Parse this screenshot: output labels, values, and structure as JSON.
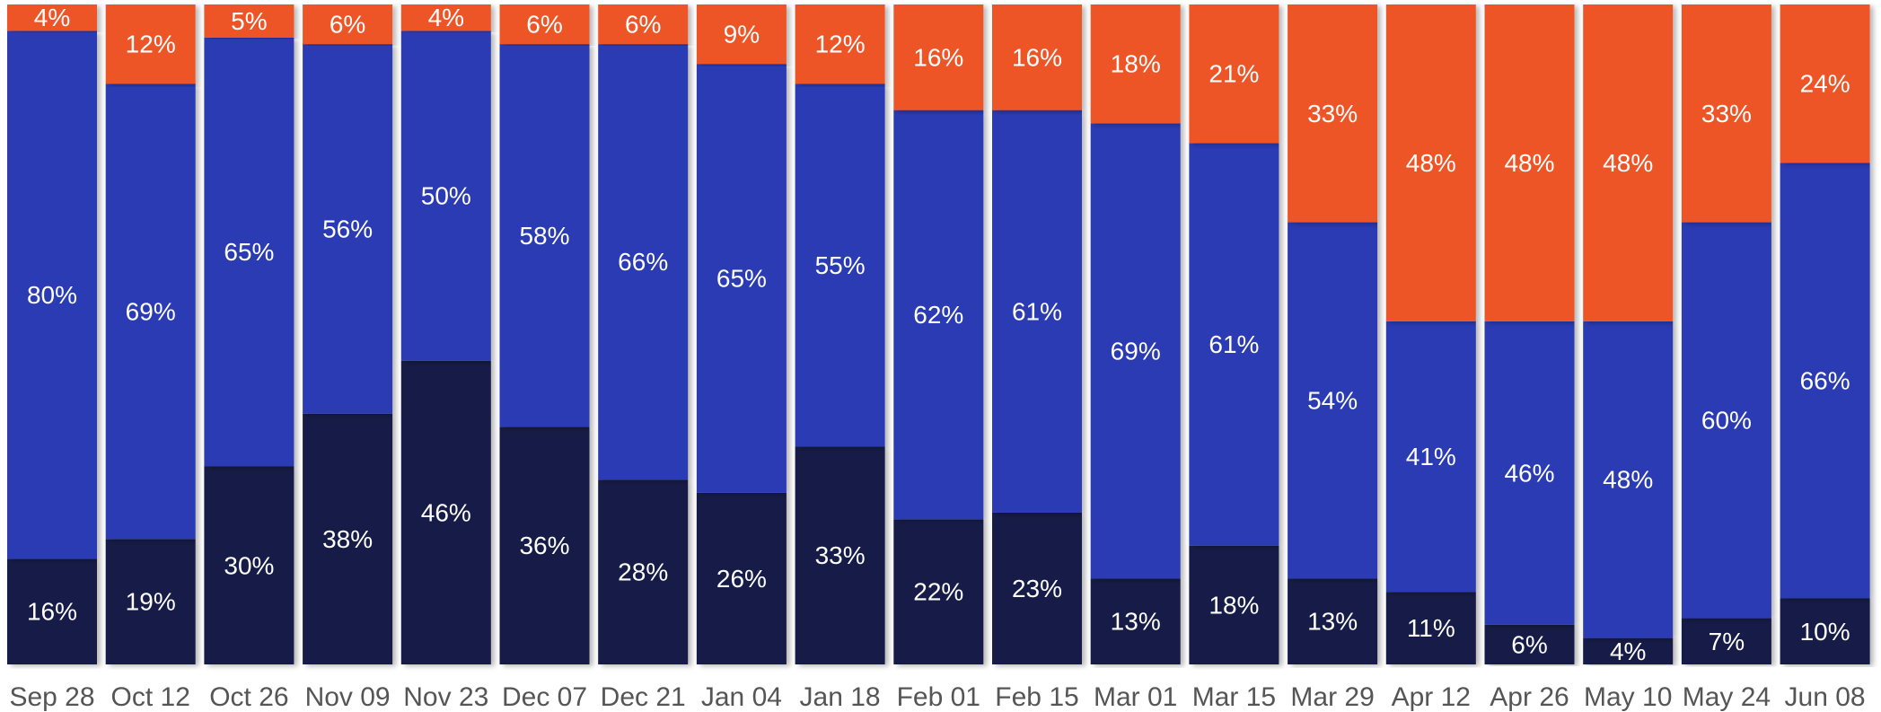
{
  "chart_data": {
    "type": "bar",
    "stacked": true,
    "normalized": true,
    "categories": [
      "Sep 28",
      "Oct 12",
      "Oct 26",
      "Nov 09",
      "Nov 23",
      "Dec 07",
      "Dec 21",
      "Jan 04",
      "Jan 18",
      "Feb 01",
      "Feb 15",
      "Mar 01",
      "Mar 15",
      "Mar 29",
      "Apr 12",
      "Apr 26",
      "May 10",
      "May 24",
      "Jun 08"
    ],
    "series": [
      {
        "values": [
          16,
          19,
          30,
          38,
          46,
          36,
          28,
          26,
          33,
          22,
          23,
          13,
          18,
          13,
          11,
          6,
          4,
          7,
          10
        ],
        "labels": [
          "16%",
          "19%",
          "30%",
          "38%",
          "46%",
          "36%",
          "28%",
          "26%",
          "33%",
          "22%",
          "23%",
          "13%",
          "18%",
          "13%",
          "11%",
          "6%",
          "4%",
          "7%",
          "10%"
        ],
        "color": "#151a47"
      },
      {
        "values": [
          80,
          69,
          65,
          56,
          50,
          58,
          66,
          65,
          55,
          62,
          61,
          69,
          61,
          54,
          41,
          46,
          48,
          60,
          66
        ],
        "labels": [
          "80%",
          "69%",
          "65%",
          "56%",
          "50%",
          "58%",
          "66%",
          "65%",
          "55%",
          "62%",
          "61%",
          "69%",
          "61%",
          "54%",
          "41%",
          "46%",
          "48%",
          "60%",
          "66%"
        ],
        "color": "#2b3bb3"
      },
      {
        "values": [
          4,
          12,
          5,
          6,
          4,
          6,
          6,
          9,
          12,
          16,
          16,
          18,
          21,
          33,
          48,
          48,
          48,
          33,
          24
        ],
        "labels": [
          "4%",
          "12%",
          "5%",
          "6%",
          "4%",
          "6%",
          "6%",
          "9%",
          "12%",
          "16%",
          "16%",
          "18%",
          "21%",
          "33%",
          "48%",
          "48%",
          "48%",
          "33%",
          "24%"
        ],
        "color": "#ee5527"
      }
    ],
    "ylim": [
      0,
      100
    ],
    "grid": false,
    "legend": "none",
    "title": "",
    "xlabel": "",
    "ylabel": ""
  }
}
